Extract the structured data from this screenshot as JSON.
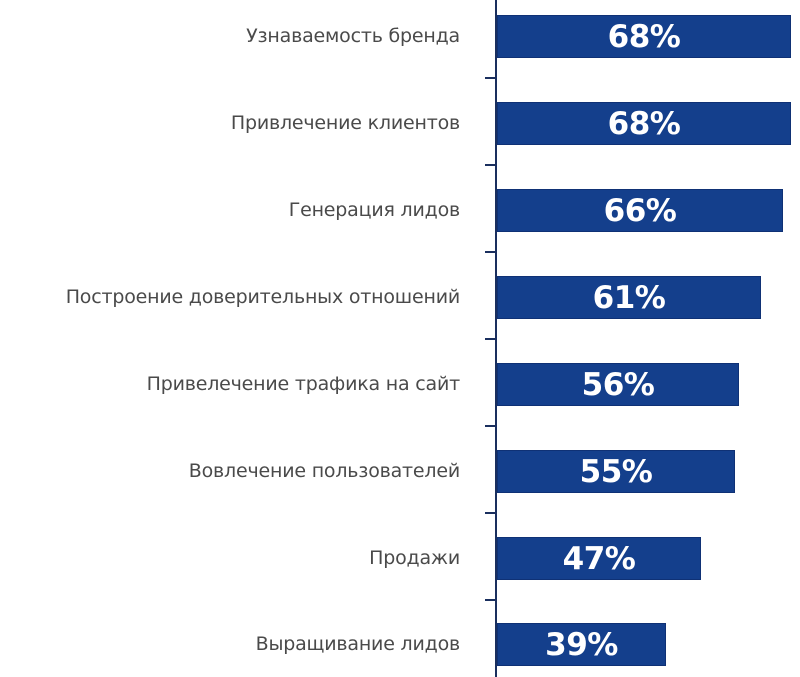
{
  "chart_data": {
    "type": "bar",
    "orientation": "horizontal",
    "title": "",
    "xlabel": "",
    "ylabel": "",
    "categories": [
      "Узнаваемость бренда",
      "Привлечение клиентов",
      "Генерация лидов",
      "Построение доверительных отношений",
      "Привелечение трафика на сайт",
      "Вовлечение пользователей",
      "Продажи",
      "Выращивание лидов"
    ],
    "values": [
      68,
      68,
      66,
      61,
      56,
      55,
      47,
      39
    ],
    "value_labels": [
      "68%",
      "68%",
      "66%",
      "61%",
      "56%",
      "55%",
      "47%",
      "39%"
    ],
    "unit": "%",
    "bar_color": "#143f8c",
    "grid": false,
    "legend": null
  },
  "rows": [
    {
      "label": "Узнаваемость бренда",
      "value": "68%",
      "pct": 68
    },
    {
      "label": "Привлечение клиентов",
      "value": "68%",
      "pct": 68
    },
    {
      "label": "Генерация лидов",
      "value": "66%",
      "pct": 66
    },
    {
      "label": "Построение доверительных отношений",
      "value": "61%",
      "pct": 61
    },
    {
      "label": "Привелечение трафика на сайт",
      "value": "56%",
      "pct": 56
    },
    {
      "label": "Вовлечение пользователей",
      "value": "55%",
      "pct": 55
    },
    {
      "label": "Продажи",
      "value": "47%",
      "pct": 47
    },
    {
      "label": "Выращивание лидов",
      "value": "39%",
      "pct": 39
    }
  ]
}
